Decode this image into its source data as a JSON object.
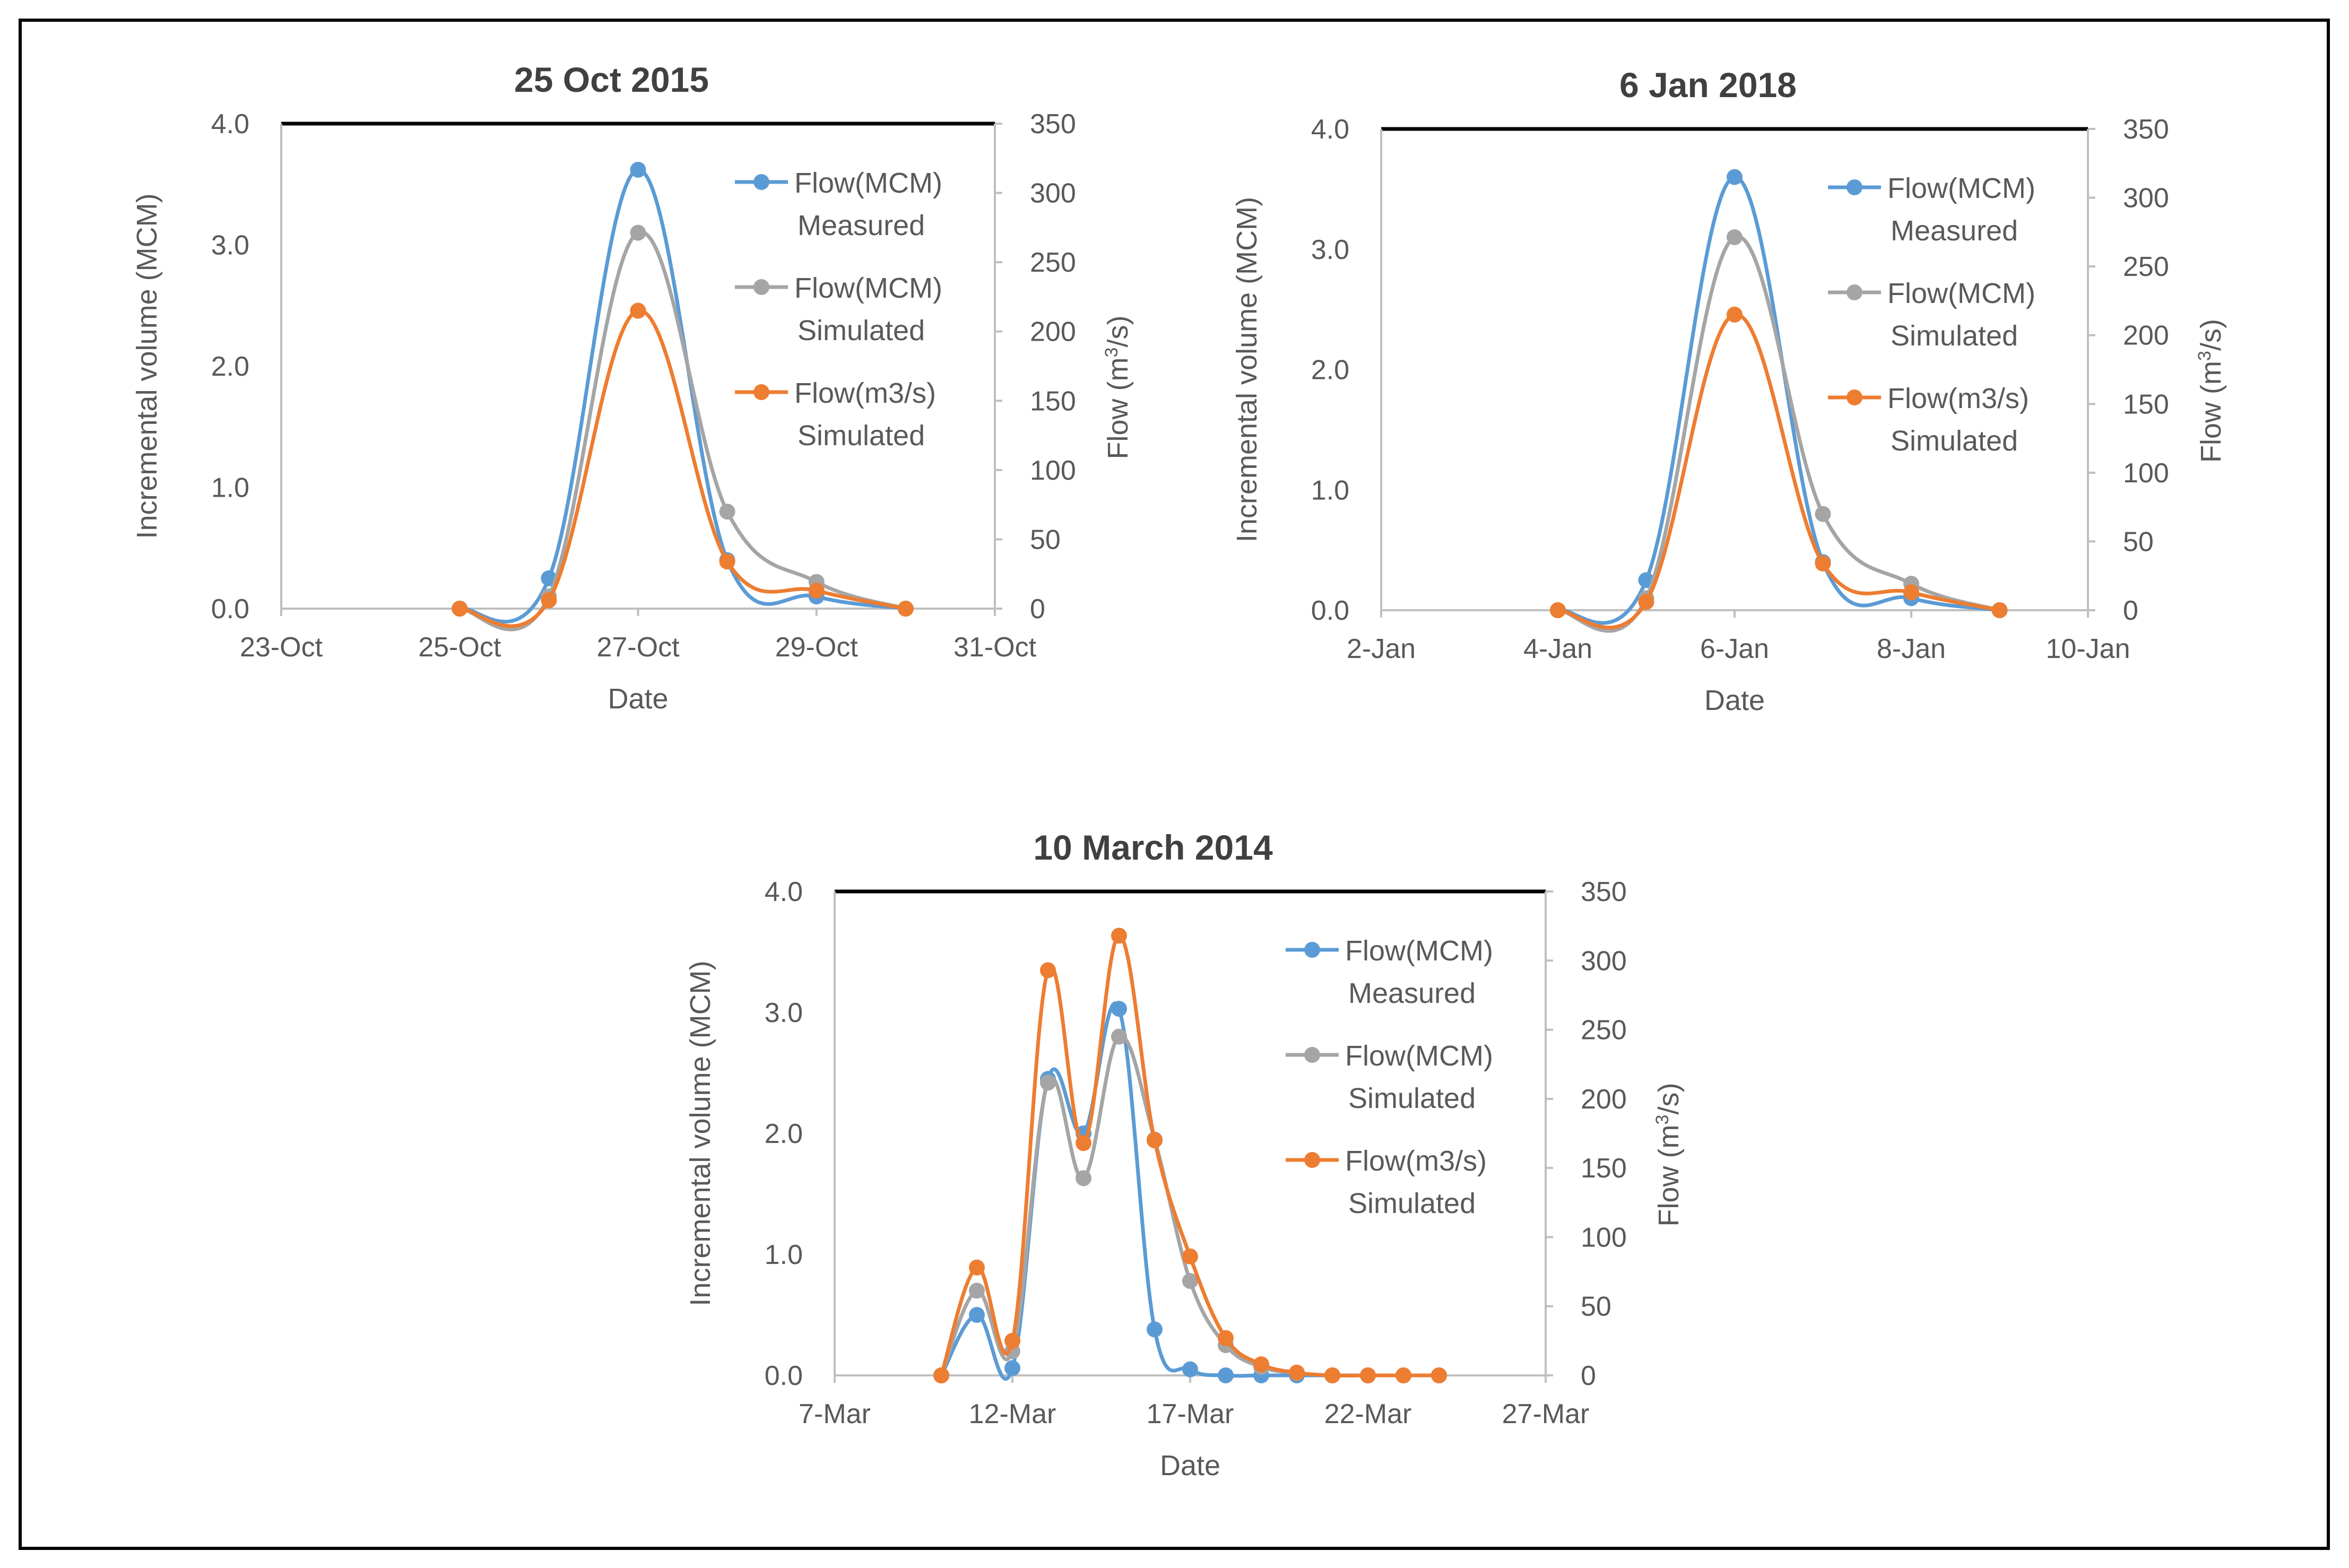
{
  "colors": {
    "measured": "#5b9bd5",
    "simulated_mcm": "#a5a5a5",
    "simulated_flow": "#ed7d31",
    "axis": "#bfbfbf",
    "text": "#595959",
    "frame": "#000000"
  },
  "chart_data": [
    {
      "type": "line",
      "title": "25 Oct 2015",
      "xlabel": "Date",
      "ylabel": "Incremental volume (MCM)",
      "y2label_prefix": "Flow (m",
      "y2label_sup": "3",
      "y2label_suffix": "/s)",
      "xlim": [
        0,
        8
      ],
      "ylim": [
        0,
        4
      ],
      "y2lim": [
        0,
        350
      ],
      "x_ticks": [
        0,
        2,
        4,
        6,
        8
      ],
      "x_tick_labels": [
        "23-Oct",
        "25-Oct",
        "27-Oct",
        "29-Oct",
        "31-Oct"
      ],
      "y_ticks": [
        0,
        1,
        2,
        3,
        4
      ],
      "y_tick_labels": [
        "0.0",
        "1.0",
        "2.0",
        "3.0",
        "4.0"
      ],
      "y2_ticks": [
        0,
        50,
        100,
        150,
        200,
        250,
        300,
        350
      ],
      "y2_tick_labels": [
        "0",
        "50",
        "100",
        "150",
        "200",
        "250",
        "300",
        "350"
      ],
      "legend_position": "top-right",
      "grid": false,
      "series": [
        {
          "name_line1": "Flow(MCM)",
          "name_line2": "Measured",
          "axis": "left",
          "color_key": "measured",
          "x": [
            2,
            3,
            4,
            5,
            6,
            7
          ],
          "y": [
            0,
            0.25,
            3.62,
            0.4,
            0.1,
            0
          ]
        },
        {
          "name_line1": "Flow(MCM)",
          "name_line2": "Simulated",
          "axis": "left",
          "color_key": "simulated_mcm",
          "x": [
            2,
            3,
            4,
            5,
            6,
            7
          ],
          "y": [
            0,
            0.1,
            3.1,
            0.8,
            0.22,
            0
          ]
        },
        {
          "name_line1": "Flow(m3/s)",
          "name_line2": "Simulated",
          "axis": "right",
          "color_key": "simulated_flow",
          "x": [
            2,
            3,
            4,
            5,
            6,
            7
          ],
          "y": [
            0,
            6,
            215,
            34,
            13,
            0
          ]
        }
      ]
    },
    {
      "type": "line",
      "title": "6 Jan 2018",
      "xlabel": "Date",
      "ylabel": "Incremental volume (MCM)",
      "y2label_prefix": "Flow (m",
      "y2label_sup": "3",
      "y2label_suffix": "/s)",
      "xlim": [
        0,
        8
      ],
      "ylim": [
        0,
        4
      ],
      "y2lim": [
        0,
        350
      ],
      "x_ticks": [
        0,
        2,
        4,
        6,
        8
      ],
      "x_tick_labels": [
        "2-Jan",
        "4-Jan",
        "6-Jan",
        "8-Jan",
        "10-Jan"
      ],
      "y_ticks": [
        0,
        1,
        2,
        3,
        4
      ],
      "y_tick_labels": [
        "0.0",
        "1.0",
        "2.0",
        "3.0",
        "4.0"
      ],
      "y2_ticks": [
        0,
        50,
        100,
        150,
        200,
        250,
        300,
        350
      ],
      "y2_tick_labels": [
        "0",
        "50",
        "100",
        "150",
        "200",
        "250",
        "300",
        "350"
      ],
      "legend_position": "top-right",
      "grid": false,
      "series": [
        {
          "name_line1": "Flow(MCM)",
          "name_line2": "Measured",
          "axis": "left",
          "color_key": "measured",
          "x": [
            2,
            3,
            4,
            5,
            6,
            7
          ],
          "y": [
            0,
            0.25,
            3.6,
            0.4,
            0.1,
            0
          ]
        },
        {
          "name_line1": "Flow(MCM)",
          "name_line2": "Simulated",
          "axis": "left",
          "color_key": "simulated_mcm",
          "x": [
            2,
            3,
            4,
            5,
            6,
            7
          ],
          "y": [
            0,
            0.1,
            3.1,
            0.8,
            0.22,
            0
          ]
        },
        {
          "name_line1": "Flow(m3/s)",
          "name_line2": "Simulated",
          "axis": "right",
          "color_key": "simulated_flow",
          "x": [
            2,
            3,
            4,
            5,
            6,
            7
          ],
          "y": [
            0,
            6,
            215,
            34,
            13,
            0
          ]
        }
      ]
    },
    {
      "type": "line",
      "title": "10 March 2014",
      "xlabel": "Date",
      "ylabel": "Incremental volume (MCM)",
      "y2label_prefix": "Flow (m",
      "y2label_sup": "3",
      "y2label_suffix": "/s)",
      "xlim": [
        0,
        20
      ],
      "ylim": [
        0,
        4
      ],
      "y2lim": [
        0,
        350
      ],
      "x_ticks": [
        0,
        5,
        10,
        15,
        20
      ],
      "x_tick_labels": [
        "7-Mar",
        "12-Mar",
        "17-Mar",
        "22-Mar",
        "27-Mar"
      ],
      "y_ticks": [
        0,
        1,
        2,
        3,
        4
      ],
      "y_tick_labels": [
        "0.0",
        "1.0",
        "2.0",
        "3.0",
        "4.0"
      ],
      "y2_ticks": [
        0,
        50,
        100,
        150,
        200,
        250,
        300,
        350
      ],
      "y2_tick_labels": [
        "0",
        "50",
        "100",
        "150",
        "200",
        "250",
        "300",
        "350"
      ],
      "legend_position": "top-right",
      "grid": false,
      "series": [
        {
          "name_line1": "Flow(MCM)",
          "name_line2": "Measured",
          "axis": "left",
          "color_key": "measured",
          "x": [
            3,
            4,
            5,
            6,
            7,
            8,
            9,
            10,
            11,
            12,
            13,
            14,
            15,
            16,
            17
          ],
          "y": [
            0,
            0.5,
            0.06,
            2.45,
            2.0,
            3.03,
            0.38,
            0.05,
            0,
            0,
            0,
            0,
            0,
            0,
            0
          ]
        },
        {
          "name_line1": "Flow(MCM)",
          "name_line2": "Simulated",
          "axis": "left",
          "color_key": "simulated_mcm",
          "x": [
            3,
            4,
            5,
            6,
            7,
            8,
            9,
            10,
            11,
            12,
            13,
            14,
            15,
            16,
            17
          ],
          "y": [
            0,
            0.7,
            0.2,
            2.42,
            1.63,
            2.8,
            1.95,
            0.78,
            0.25,
            0.07,
            0.02,
            0,
            0,
            0,
            0
          ]
        },
        {
          "name_line1": "Flow(m3/s)",
          "name_line2": "Simulated",
          "axis": "right",
          "color_key": "simulated_flow",
          "x": [
            3,
            4,
            5,
            6,
            7,
            8,
            9,
            10,
            11,
            12,
            13,
            14,
            15,
            16,
            17
          ],
          "y": [
            0,
            78,
            25,
            293,
            168,
            318,
            170,
            86,
            27,
            8,
            2,
            0,
            0,
            0,
            0
          ]
        }
      ]
    }
  ]
}
